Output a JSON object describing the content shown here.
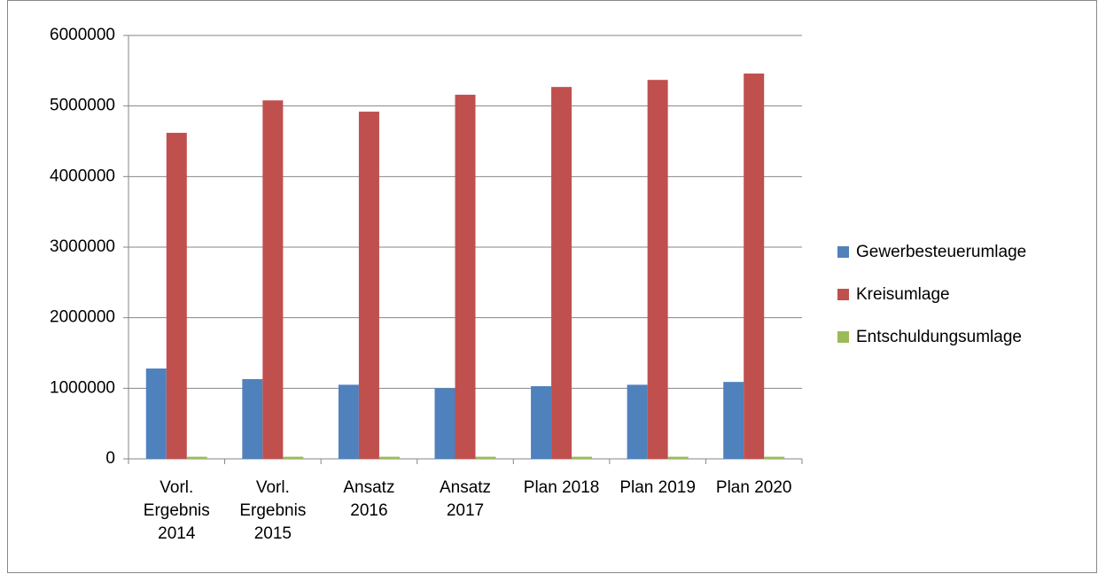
{
  "chart_data": {
    "type": "bar",
    "categories": [
      "Vorl. Ergebnis 2014",
      "Vorl. Ergebnis 2015",
      "Ansatz 2016",
      "Ansatz 2017",
      "Plan 2018",
      "Plan 2019",
      "Plan 2020"
    ],
    "series": [
      {
        "name": "Gewerbesteuerumlage",
        "color": "#4f81bd",
        "values": [
          1280000,
          1130000,
          1050000,
          1000000,
          1030000,
          1050000,
          1090000
        ]
      },
      {
        "name": "Kreisumlage",
        "color": "#c0504d",
        "values": [
          4620000,
          5080000,
          4920000,
          5160000,
          5270000,
          5370000,
          5460000
        ]
      },
      {
        "name": "Entschuldungsumlage",
        "color": "#9bbb59",
        "values": [
          30000,
          30000,
          30000,
          30000,
          30000,
          30000,
          30000
        ]
      }
    ],
    "ylim": [
      0,
      6000000
    ],
    "yticks": [
      0,
      1000000,
      2000000,
      3000000,
      4000000,
      5000000,
      6000000
    ],
    "grid": true,
    "legend": "right"
  }
}
